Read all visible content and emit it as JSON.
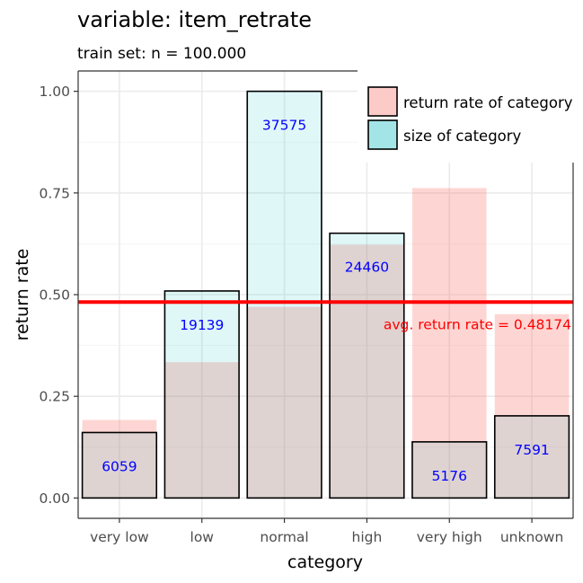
{
  "title": "variable: item_retrate",
  "subtitle": "train set: n = 100.000",
  "chart_data": {
    "type": "bar",
    "xlabel": "category",
    "ylabel": "return rate",
    "ylim": [
      -0.05,
      1.05
    ],
    "yticks": [
      0.0,
      0.25,
      0.5,
      0.75,
      1.0
    ],
    "ytick_labels": [
      "0.00",
      "0.25",
      "0.50",
      "0.75",
      "1.00"
    ],
    "grid": true,
    "legend_position": "top-right",
    "categories": [
      "very low",
      "low",
      "normal",
      "high",
      "very high",
      "unknown"
    ],
    "series": [
      {
        "name": "return rate of category",
        "color": "#f8766d",
        "values": [
          0.192,
          0.334,
          0.47,
          0.623,
          0.762,
          0.452
        ]
      },
      {
        "name": "size of category",
        "color": "#00bfc4",
        "values": [
          0.161,
          0.509,
          1.0,
          0.651,
          0.138,
          0.202
        ],
        "counts": [
          "6059",
          "19139",
          "37575",
          "24460",
          "5176",
          "7591"
        ]
      }
    ],
    "reference_line": {
      "value": 0.48174,
      "label": "avg. return rate = 0.48174",
      "color": "#ff0000"
    }
  }
}
